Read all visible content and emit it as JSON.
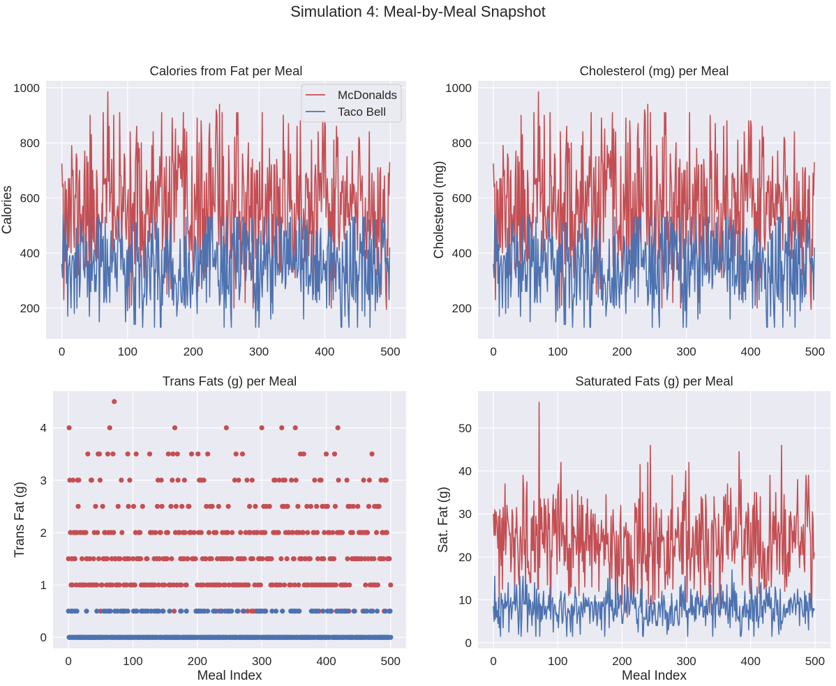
{
  "figure": {
    "suptitle": "Simulation 4: Meal-by-Meal Snapshot"
  },
  "colors": {
    "mcdonalds": "#c44e52",
    "taco_bell": "#4c72b0",
    "axes_bg": "#eaeaf2",
    "grid": "#ffffff",
    "text": "#262626"
  },
  "chart_data": [
    {
      "id": "calories",
      "type": "line",
      "title": "Calories from Fat per Meal",
      "xlabel": "",
      "ylabel": "Calories",
      "xlim": [
        -24,
        524
      ],
      "ylim": [
        88,
        1025
      ],
      "xticks": [
        0,
        100,
        200,
        300,
        400,
        500
      ],
      "yticks": [
        200,
        400,
        600,
        800,
        1000
      ],
      "grid": true,
      "legend": {
        "position": "top-right",
        "entries": [
          "McDonalds",
          "Taco Bell"
        ]
      },
      "n_points": 500,
      "series": [
        {
          "name": "McDonalds",
          "color_key": "mcdonalds",
          "generator": {
            "seed": 11,
            "mean": 560,
            "spread": 150,
            "min": 195,
            "max": 985,
            "quant": 10
          },
          "anchors": [
            [
              0,
              725
            ],
            [
              1,
              640
            ],
            [
              2,
              650
            ],
            [
              63,
              910
            ],
            [
              70,
              985
            ],
            [
              104,
              840
            ],
            [
              173,
              850
            ],
            [
              235,
              920
            ],
            [
              240,
              940
            ],
            [
              244,
              910
            ],
            [
              305,
              910
            ],
            [
              345,
              870
            ],
            [
              401,
              860
            ],
            [
              418,
              860
            ],
            [
              494,
              195
            ],
            [
              499,
              730
            ]
          ]
        },
        {
          "name": "Taco Bell",
          "color_key": "taco_bell",
          "generator": {
            "seed": 23,
            "mean": 350,
            "spread": 110,
            "min": 130,
            "max": 575,
            "quant": 10
          },
          "anchors": [
            [
              0,
              360
            ],
            [
              1,
              310
            ],
            [
              2,
              540
            ],
            [
              9,
              170
            ],
            [
              110,
              140
            ],
            [
              425,
              130
            ],
            [
              499,
              420
            ]
          ]
        }
      ]
    },
    {
      "id": "cholesterol",
      "type": "line",
      "title": "Cholesterol (mg) per Meal",
      "xlabel": "",
      "ylabel": "Cholesterol (mg)",
      "xlim": [
        -24,
        524
      ],
      "ylim": [
        88,
        1025
      ],
      "xticks": [
        0,
        100,
        200,
        300,
        400,
        500
      ],
      "yticks": [
        200,
        400,
        600,
        800,
        1000
      ],
      "grid": true,
      "legend": null,
      "n_points": 500,
      "series": [
        {
          "name": "McDonalds",
          "color_key": "mcdonalds",
          "generator": {
            "seed": 11,
            "mean": 560,
            "spread": 150,
            "min": 195,
            "max": 985,
            "quant": 10
          },
          "anchors": [
            [
              0,
              725
            ],
            [
              1,
              640
            ],
            [
              2,
              650
            ],
            [
              63,
              910
            ],
            [
              70,
              985
            ],
            [
              104,
              840
            ],
            [
              173,
              850
            ],
            [
              235,
              920
            ],
            [
              240,
              940
            ],
            [
              244,
              910
            ],
            [
              305,
              910
            ],
            [
              345,
              870
            ],
            [
              401,
              860
            ],
            [
              418,
              860
            ],
            [
              494,
              195
            ],
            [
              499,
              730
            ]
          ]
        },
        {
          "name": "Taco Bell",
          "color_key": "taco_bell",
          "generator": {
            "seed": 23,
            "mean": 350,
            "spread": 110,
            "min": 130,
            "max": 575,
            "quant": 10
          },
          "anchors": [
            [
              0,
              360
            ],
            [
              1,
              310
            ],
            [
              2,
              540
            ],
            [
              9,
              170
            ],
            [
              110,
              140
            ],
            [
              425,
              130
            ],
            [
              499,
              420
            ]
          ]
        }
      ]
    },
    {
      "id": "trans",
      "type": "scatter",
      "title": "Trans Fats (g) per Meal",
      "xlabel": "Meal Index",
      "ylabel": "Trans Fat (g)",
      "xlim": [
        -24,
        524
      ],
      "ylim": [
        -0.21,
        4.7
      ],
      "xticks": [
        0,
        100,
        200,
        300,
        400,
        500
      ],
      "yticks": [
        0,
        1,
        2,
        3,
        4
      ],
      "grid": true,
      "legend": null,
      "n_points": 501,
      "series": [
        {
          "name": "McDonalds",
          "color_key": "mcdonalds",
          "levels": [
            0.5,
            1,
            1.5,
            2,
            2.5,
            3,
            3.5,
            4,
            4.5
          ],
          "level_weights": [
            0.06,
            0.3,
            0.24,
            0.2,
            0.1,
            0.07,
            0.025,
            0.005,
            0.0
          ],
          "generator": {
            "seed": 37
          },
          "anchors": [
            [
              71,
              4.5
            ],
            [
              64,
              4.0
            ],
            [
              165,
              4.0
            ],
            [
              245,
              4.0
            ],
            [
              300,
              4.0
            ],
            [
              331,
              4.0
            ],
            [
              352,
              4.0
            ],
            [
              46,
              3.5
            ],
            [
              69,
              3.5
            ],
            [
              105,
              3.5
            ],
            [
              126,
              3.5
            ],
            [
              155,
              3.5
            ],
            [
              191,
              3.5
            ],
            [
              260,
              3.5
            ],
            [
              365,
              3.5
            ],
            [
              2,
              3.0
            ],
            [
              491,
              3.0
            ]
          ]
        },
        {
          "name": "Taco Bell",
          "color_key": "taco_bell",
          "levels": [
            0,
            0.5
          ],
          "level_weights": [
            0.82,
            0.18
          ],
          "generator": {
            "seed": 41
          },
          "anchors": []
        }
      ]
    },
    {
      "id": "satfat",
      "type": "line",
      "title": "Saturated Fats (g) per Meal",
      "xlabel": "Meal Index",
      "ylabel": "Sat. Fat (g)",
      "xlim": [
        -24,
        524
      ],
      "ylim": [
        -1.3,
        58.6
      ],
      "xticks": [
        0,
        100,
        200,
        300,
        400,
        500
      ],
      "yticks": [
        0,
        10,
        20,
        30,
        40,
        50
      ],
      "grid": true,
      "legend": null,
      "n_points": 500,
      "series": [
        {
          "name": "McDonalds",
          "color_key": "mcdonalds",
          "generator": {
            "seed": 53,
            "mean": 23,
            "spread": 7,
            "min": 6,
            "max": 56,
            "quant": 0.5
          },
          "anchors": [
            [
              0,
              30
            ],
            [
              1,
              25
            ],
            [
              2,
              31
            ],
            [
              71,
              56
            ],
            [
              105,
              42
            ],
            [
              244,
              46
            ],
            [
              240,
              42
            ],
            [
              304,
              42
            ],
            [
              490,
              39
            ],
            [
              499,
              21
            ]
          ]
        },
        {
          "name": "Taco Bell",
          "color_key": "taco_bell",
          "generator": {
            "seed": 67,
            "mean": 8,
            "spread": 3,
            "min": 1.5,
            "max": 17,
            "quant": 0.5
          },
          "anchors": [
            [
              0,
              8.5
            ],
            [
              2,
              15.5
            ],
            [
              371,
              17
            ],
            [
              384,
              1.5
            ],
            [
              499,
              8
            ]
          ]
        }
      ]
    }
  ]
}
